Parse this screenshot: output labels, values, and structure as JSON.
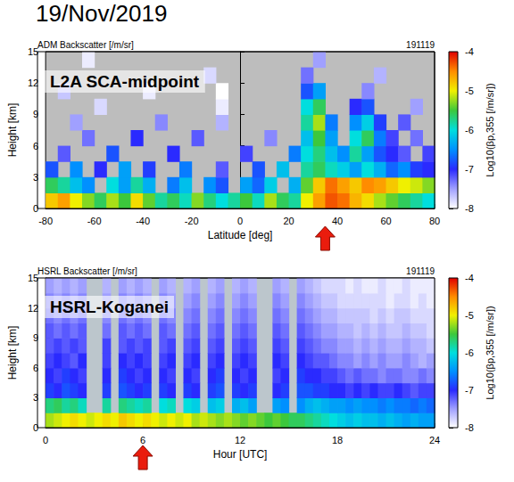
{
  "title": "19/Nov/2019",
  "chart_data": [
    {
      "type": "heatmap",
      "title": "ADM Backscatter [/m/sr]",
      "subtitle": "191119",
      "annotation": "L2A SCA-midpoint",
      "xlabel": "Latitude [deg]",
      "ylabel": "Height [km]",
      "grid": false,
      "xlim": [
        -80,
        80
      ],
      "xticks": [
        -80,
        -60,
        -40,
        -20,
        0,
        20,
        40,
        60,
        80
      ],
      "ylim": [
        0,
        15
      ],
      "yticks": [
        0,
        3,
        6,
        9,
        12,
        15
      ],
      "colorbar_label": "Log10(βp,355 [/m/sr])",
      "colorbar_lim": [
        -8,
        -4
      ],
      "colorbar_ticks": [
        -8,
        -7,
        -6,
        -5,
        -4
      ],
      "arrow_x": 35,
      "x": [
        -77.5,
        -72.5,
        -67.5,
        -62.5,
        -57.5,
        -52.5,
        -47.5,
        -42.5,
        -37.5,
        -32.5,
        -27.5,
        -22.5,
        -17.5,
        -12.5,
        -7.5,
        -2.5,
        2.5,
        7.5,
        12.5,
        17.5,
        22.5,
        27.5,
        32.5,
        37.5,
        42.5,
        47.5,
        52.5,
        57.5,
        62.5,
        67.5,
        72.5,
        77.5
      ],
      "y": [
        0.75,
        2.25,
        3.75,
        5.25,
        6.75,
        8.25,
        9.75,
        11.25,
        12.75,
        14.25
      ],
      "values": [
        [
          -4.8,
          -4.6,
          -5.0,
          -5.3,
          -5.6,
          -5.2,
          -5.5,
          -4.9,
          -5.4,
          -5.8,
          -5.6,
          -5.9,
          -5.3,
          -5.7,
          -6.0,
          -5.8,
          -5.5,
          -5.9,
          -5.2,
          -5.6,
          -5.8,
          -5.0,
          -4.6,
          -4.3,
          -4.4,
          -4.7,
          -4.9,
          -5.2,
          -5.4,
          -5.6,
          -5.8,
          -6.0
        ],
        [
          -5.6,
          -5.8,
          -6.2,
          -6.5,
          null,
          -6.0,
          -6.4,
          -5.8,
          -6.3,
          null,
          -6.6,
          -6.2,
          null,
          -6.5,
          -6.8,
          null,
          -6.4,
          -6.7,
          -6.1,
          null,
          -6.3,
          -5.4,
          -4.8,
          -4.4,
          -4.6,
          -4.8,
          -4.5,
          -4.6,
          -4.8,
          -5.0,
          -5.1,
          -5.3
        ],
        [
          -6.8,
          null,
          -6.5,
          null,
          -7.0,
          null,
          -6.4,
          null,
          -6.9,
          null,
          null,
          -6.6,
          null,
          null,
          -7.2,
          null,
          null,
          -6.8,
          null,
          -6.2,
          null,
          -5.8,
          -5.6,
          -5.9,
          -6.1,
          -6.4,
          -6.0,
          -6.3,
          -6.7,
          -6.5,
          -6.9,
          -7.0
        ],
        [
          null,
          -7.2,
          null,
          null,
          null,
          -6.8,
          null,
          null,
          null,
          null,
          -7.0,
          null,
          null,
          null,
          null,
          null,
          -7.1,
          null,
          null,
          null,
          -6.6,
          -6.0,
          -5.7,
          -6.2,
          -6.5,
          -5.8,
          -6.4,
          -6.8,
          -7.0,
          -7.2,
          null,
          -7.1
        ],
        [
          null,
          null,
          null,
          -7.3,
          null,
          null,
          null,
          -7.0,
          null,
          null,
          null,
          null,
          -7.2,
          null,
          null,
          null,
          null,
          null,
          -7.4,
          null,
          null,
          -6.2,
          -5.5,
          -6.4,
          null,
          -6.0,
          -5.6,
          -6.6,
          -7.1,
          null,
          -7.3,
          null
        ],
        [
          null,
          null,
          -7.5,
          null,
          null,
          null,
          null,
          null,
          null,
          -7.4,
          null,
          null,
          null,
          null,
          -7.6,
          null,
          null,
          null,
          null,
          null,
          null,
          -5.8,
          -5.2,
          -6.6,
          null,
          -6.5,
          -6.1,
          -6.9,
          null,
          -7.2,
          null,
          null
        ],
        [
          null,
          null,
          null,
          null,
          -7.8,
          null,
          null,
          null,
          null,
          null,
          null,
          null,
          null,
          null,
          -7.9,
          null,
          null,
          null,
          null,
          null,
          null,
          -6.0,
          -5.6,
          null,
          null,
          -7.0,
          -6.8,
          null,
          null,
          null,
          -7.5,
          null
        ],
        [
          null,
          -7.7,
          null,
          null,
          null,
          null,
          null,
          null,
          -7.9,
          null,
          null,
          null,
          null,
          null,
          -8.0,
          null,
          null,
          null,
          null,
          null,
          null,
          -6.8,
          -6.4,
          null,
          null,
          null,
          -7.4,
          null,
          null,
          null,
          null,
          null
        ],
        [
          null,
          null,
          null,
          null,
          null,
          null,
          null,
          null,
          null,
          null,
          null,
          null,
          null,
          -7.8,
          null,
          null,
          null,
          null,
          null,
          null,
          null,
          -7.3,
          null,
          null,
          null,
          null,
          null,
          -7.6,
          null,
          null,
          null,
          null
        ],
        [
          null,
          null,
          null,
          -7.9,
          null,
          null,
          null,
          null,
          null,
          null,
          null,
          null,
          null,
          null,
          null,
          null,
          null,
          null,
          null,
          null,
          null,
          null,
          -7.5,
          null,
          null,
          null,
          null,
          null,
          null,
          null,
          null,
          null
        ]
      ]
    },
    {
      "type": "heatmap",
      "title": "HSRL Backscatter [/m/sr]",
      "subtitle": "191119",
      "annotation": "HSRL-Koganei",
      "xlabel": "Hour [UTC]",
      "ylabel": "Height [km]",
      "grid": false,
      "xlim": [
        0,
        24
      ],
      "xticks": [
        0,
        6,
        12,
        18,
        24
      ],
      "ylim": [
        0,
        15
      ],
      "yticks": [
        0,
        3,
        6,
        9,
        12,
        15
      ],
      "colorbar_label": "Log10(βp,355 [/m/sr])",
      "colorbar_lim": [
        -8,
        -4
      ],
      "colorbar_ticks": [
        -8,
        -7,
        -6,
        -5,
        -4
      ],
      "arrow_x": 6,
      "x": [
        0.25,
        0.75,
        1.25,
        1.75,
        2.25,
        2.75,
        3.25,
        3.75,
        4.25,
        4.75,
        5.25,
        5.75,
        6.25,
        6.75,
        7.25,
        7.75,
        8.25,
        8.75,
        9.25,
        9.75,
        10.25,
        10.75,
        11.25,
        11.75,
        12.25,
        12.75,
        13.25,
        13.75,
        14.25,
        14.75,
        15.25,
        15.75,
        16.25,
        16.75,
        17.25,
        17.75,
        18.25,
        18.75,
        19.25,
        19.75,
        20.25,
        20.75,
        21.25,
        21.75,
        22.25,
        22.75,
        23.25,
        23.75
      ],
      "y": [
        0.75,
        2.25,
        3.75,
        5.25,
        6.75,
        8.25,
        9.75,
        11.25,
        12.75,
        14.25
      ],
      "values": [
        [
          -5.2,
          -5.1,
          -5.0,
          -4.9,
          -5.0,
          -5.1,
          -5.0,
          -4.9,
          -5.0,
          -4.8,
          -4.9,
          -5.0,
          -4.9,
          -5.0,
          -5.1,
          -5.0,
          -5.1,
          -5.0,
          -5.2,
          -5.1,
          -5.2,
          -5.3,
          -5.2,
          -5.3,
          -5.4,
          -5.3,
          -5.4,
          -5.5,
          -5.4,
          -5.5,
          -5.6,
          -5.6,
          -5.7,
          -5.8,
          -5.9,
          -6.0,
          -6.1,
          -6.2,
          -6.1,
          -6.2,
          -6.2,
          -6.3,
          -6.2,
          -6.3,
          -6.4,
          -6.3,
          -6.4,
          -6.4
        ],
        [
          -5.7,
          -5.6,
          -5.8,
          -5.7,
          -5.9,
          null,
          null,
          -5.8,
          null,
          -5.7,
          -5.8,
          -5.9,
          -5.8,
          null,
          -6.0,
          -5.9,
          null,
          -6.0,
          -6.1,
          null,
          -6.2,
          -6.1,
          null,
          -6.3,
          -6.2,
          -6.4,
          null,
          null,
          -6.4,
          -6.5,
          null,
          -6.5,
          -6.3,
          -6.2,
          -6.3,
          -6.4,
          -6.4,
          -6.5,
          -6.4,
          -6.5,
          -6.5,
          -6.6,
          -6.5,
          -6.6,
          -6.6,
          -6.7,
          -6.6,
          -6.7
        ],
        [
          -6.9,
          -7.0,
          -6.8,
          -6.9,
          -7.0,
          null,
          null,
          -6.9,
          null,
          -6.8,
          -6.9,
          -7.0,
          -6.9,
          null,
          -6.9,
          -7.0,
          null,
          -6.9,
          -7.0,
          null,
          -6.9,
          -6.8,
          null,
          -6.9,
          -7.0,
          -6.9,
          null,
          null,
          -7.0,
          -6.9,
          null,
          -6.8,
          -6.8,
          -6.9,
          -6.9,
          -7.0,
          -7.0,
          -7.1,
          -7.0,
          -7.1,
          -7.0,
          -7.1,
          -7.1,
          -7.0,
          -7.1,
          -7.2,
          -7.1,
          -7.1
        ],
        [
          -7.0,
          -7.1,
          -6.9,
          -7.0,
          -7.1,
          null,
          null,
          -7.0,
          null,
          -6.9,
          -7.0,
          -7.1,
          -7.0,
          null,
          -7.0,
          -7.1,
          null,
          -7.0,
          -7.1,
          null,
          -7.0,
          -6.9,
          null,
          -7.0,
          -7.1,
          -7.0,
          null,
          null,
          -7.1,
          -7.0,
          null,
          -6.9,
          -7.0,
          -7.0,
          -7.1,
          -7.1,
          -7.2,
          -7.3,
          -7.2,
          -7.3,
          -7.3,
          -7.4,
          -7.3,
          -7.3,
          -7.4,
          -7.4,
          -7.3,
          -7.4
        ],
        [
          -7.1,
          -7.0,
          -7.1,
          -7.2,
          -7.0,
          null,
          null,
          -7.1,
          null,
          -7.0,
          -7.1,
          -7.0,
          -7.1,
          null,
          -7.1,
          -7.0,
          null,
          -7.1,
          -7.0,
          null,
          -7.1,
          -7.0,
          null,
          -7.1,
          -7.0,
          -7.1,
          null,
          null,
          -7.0,
          -7.1,
          null,
          -7.0,
          -7.1,
          -7.2,
          -7.2,
          -7.3,
          -7.4,
          -7.4,
          -7.5,
          -7.4,
          -7.5,
          -7.4,
          -7.5,
          -7.5,
          -7.4,
          -7.5,
          -7.6,
          -7.5
        ],
        [
          -7.2,
          -7.1,
          -7.2,
          -7.1,
          -7.2,
          null,
          null,
          -7.1,
          null,
          -7.2,
          -7.1,
          -7.2,
          -7.1,
          null,
          -7.2,
          -7.1,
          null,
          -7.2,
          -7.1,
          null,
          -7.2,
          -7.1,
          null,
          -7.2,
          -7.1,
          -7.2,
          null,
          null,
          -7.1,
          -7.2,
          null,
          -7.1,
          -7.2,
          -7.3,
          -7.4,
          -7.4,
          -7.5,
          -7.5,
          -7.6,
          -7.5,
          -7.6,
          -7.5,
          -7.6,
          -7.6,
          -7.5,
          -7.6,
          -7.6,
          -7.7
        ],
        [
          -7.2,
          -7.3,
          -7.2,
          -7.3,
          -7.2,
          null,
          null,
          -7.3,
          null,
          -7.2,
          -7.3,
          -7.2,
          -7.3,
          null,
          -7.2,
          -7.3,
          null,
          -7.3,
          -7.2,
          null,
          -7.3,
          -7.2,
          null,
          -7.3,
          -7.2,
          -7.3,
          null,
          null,
          -7.2,
          -7.3,
          null,
          -7.2,
          -7.3,
          -7.4,
          -7.5,
          -7.5,
          -7.6,
          -7.6,
          -7.7,
          -7.6,
          -7.7,
          -7.6,
          -7.7,
          -7.7,
          -7.6,
          -7.7,
          -7.7,
          -7.8
        ],
        [
          -7.3,
          -7.4,
          -7.3,
          -7.4,
          -7.3,
          null,
          null,
          -7.4,
          null,
          -7.3,
          -7.4,
          -7.3,
          -7.4,
          null,
          -7.3,
          -7.4,
          null,
          -7.4,
          -7.3,
          null,
          -7.4,
          -7.3,
          null,
          -7.4,
          -7.3,
          -7.4,
          null,
          null,
          -7.3,
          -7.4,
          null,
          -7.3,
          -7.4,
          -7.5,
          -7.6,
          -7.6,
          -7.7,
          -7.7,
          -7.7,
          -7.7,
          -7.8,
          -7.7,
          -7.8,
          -7.7,
          -7.7,
          -7.8,
          -7.8,
          -7.8
        ],
        [
          -7.4,
          -7.5,
          -7.4,
          -7.5,
          -7.4,
          null,
          null,
          -7.5,
          null,
          -7.4,
          -7.5,
          -7.4,
          -7.5,
          null,
          -7.4,
          -7.5,
          null,
          -7.5,
          -7.4,
          null,
          -7.5,
          -7.4,
          null,
          -7.5,
          -7.4,
          -7.5,
          null,
          null,
          -7.4,
          -7.5,
          null,
          -7.4,
          -7.5,
          -7.6,
          -7.7,
          -7.7,
          -7.8,
          -7.8,
          -7.8,
          -7.8,
          -7.8,
          -7.8,
          -7.9,
          -7.8,
          -7.8,
          -7.9,
          -7.8,
          -7.9
        ],
        [
          -7.5,
          -7.6,
          -7.5,
          -7.6,
          -7.5,
          null,
          null,
          -7.6,
          null,
          -7.5,
          -7.6,
          -7.5,
          -7.6,
          null,
          -7.5,
          -7.6,
          null,
          -7.6,
          -7.5,
          null,
          -7.6,
          -7.5,
          null,
          -7.6,
          -7.5,
          -7.6,
          null,
          null,
          -7.5,
          -7.6,
          null,
          -7.5,
          -7.6,
          -7.7,
          -7.8,
          -7.8,
          -7.8,
          -7.9,
          -7.8,
          -7.9,
          -7.9,
          -7.8,
          -7.9,
          -7.9,
          -7.8,
          -7.9,
          -7.9,
          -7.9
        ]
      ]
    }
  ]
}
